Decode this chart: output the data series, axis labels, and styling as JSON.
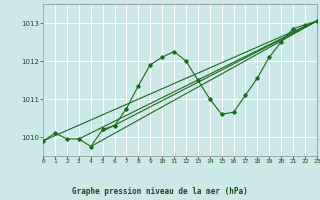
{
  "title": "Graphe pression niveau de la mer (hPa)",
  "bg_color": "#cce8e8",
  "grid_color": "#ffffff",
  "line_color": "#1a6b1a",
  "x_min": 0,
  "x_max": 23,
  "y_min": 1009.5,
  "y_max": 1013.5,
  "yticks": [
    1010,
    1011,
    1012,
    1013
  ],
  "xticks": [
    0,
    1,
    2,
    3,
    4,
    5,
    6,
    7,
    8,
    9,
    10,
    11,
    12,
    13,
    14,
    15,
    16,
    17,
    18,
    19,
    20,
    21,
    22,
    23
  ],
  "series": [
    [
      0,
      1009.9
    ],
    [
      1,
      1010.1
    ],
    [
      2,
      1009.95
    ],
    [
      3,
      1009.95
    ],
    [
      4,
      1009.75
    ],
    [
      5,
      1010.2
    ],
    [
      6,
      1010.3
    ],
    [
      7,
      1010.75
    ],
    [
      8,
      1011.35
    ],
    [
      9,
      1011.9
    ],
    [
      10,
      1012.1
    ],
    [
      11,
      1012.25
    ],
    [
      12,
      1012.0
    ],
    [
      13,
      1011.5
    ],
    [
      14,
      1011.0
    ],
    [
      15,
      1010.6
    ],
    [
      16,
      1010.65
    ],
    [
      17,
      1011.1
    ],
    [
      18,
      1011.55
    ],
    [
      19,
      1012.1
    ],
    [
      20,
      1012.5
    ],
    [
      21,
      1012.85
    ],
    [
      22,
      1012.95
    ],
    [
      23,
      1013.05
    ]
  ],
  "linear_lines": [
    [
      [
        0,
        1009.9
      ],
      [
        23,
        1013.05
      ]
    ],
    [
      [
        3,
        1009.95
      ],
      [
        23,
        1013.05
      ]
    ],
    [
      [
        4,
        1009.75
      ],
      [
        23,
        1013.05
      ]
    ],
    [
      [
        5,
        1010.15
      ],
      [
        23,
        1013.05
      ]
    ]
  ]
}
